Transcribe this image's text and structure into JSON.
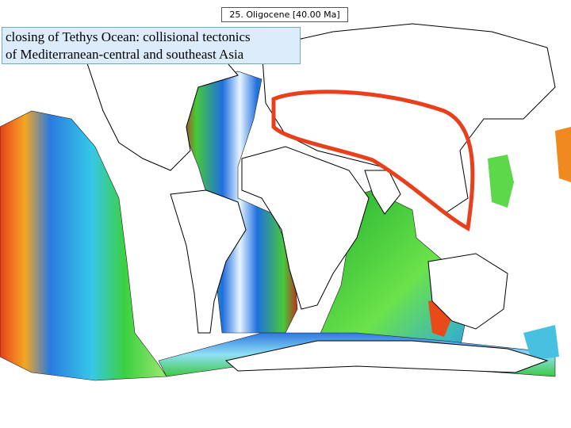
{
  "header": {
    "title": "25. Oligocene [40.00 Ma]"
  },
  "caption": {
    "lines": [
      "closing of Tethys Ocean: collisional tectonics",
      "of Mediterranean-central and southeast Asia"
    ]
  }
}
